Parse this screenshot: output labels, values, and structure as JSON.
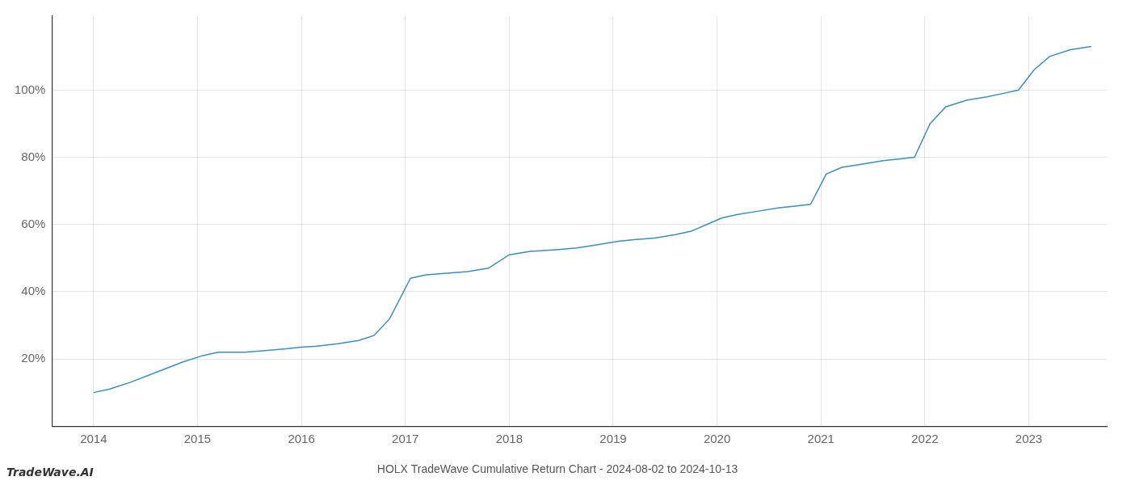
{
  "chart_data": {
    "type": "line",
    "title": "HOLX TradeWave Cumulative Return Chart - 2024-08-02 to 2024-10-13",
    "annotations": [
      "TradeWave.AI"
    ],
    "x": [
      2014.0,
      2014.15,
      2014.35,
      2014.6,
      2014.85,
      2015.05,
      2015.2,
      2015.45,
      2015.65,
      2015.85,
      2016.0,
      2016.15,
      2016.35,
      2016.55,
      2016.7,
      2016.85,
      2017.05,
      2017.2,
      2017.4,
      2017.6,
      2017.8,
      2018.0,
      2018.2,
      2018.45,
      2018.65,
      2018.85,
      2019.05,
      2019.2,
      2019.4,
      2019.6,
      2019.75,
      2019.9,
      2020.05,
      2020.2,
      2020.4,
      2020.6,
      2020.75,
      2020.9,
      2021.05,
      2021.2,
      2021.4,
      2021.6,
      2021.75,
      2021.9,
      2022.05,
      2022.2,
      2022.4,
      2022.6,
      2022.75,
      2022.9,
      2023.05,
      2023.2,
      2023.4,
      2023.6
    ],
    "values": [
      10,
      11,
      13,
      16,
      19,
      21,
      22,
      22,
      22.5,
      23,
      23.5,
      23.8,
      24.5,
      25.5,
      27,
      32,
      44,
      45,
      45.5,
      46,
      47,
      51,
      52,
      52.5,
      53,
      54,
      55,
      55.5,
      56,
      57,
      58,
      60,
      62,
      63,
      64,
      65,
      65.5,
      66,
      75,
      77,
      78,
      79,
      79.5,
      80,
      90,
      95,
      97,
      98,
      99,
      100,
      106,
      110,
      112,
      113
    ],
    "color": "#3a8fc0",
    "xlim": [
      2013.6,
      2023.75
    ],
    "ylim": [
      0,
      122
    ],
    "xticks": [
      2014,
      2015,
      2016,
      2017,
      2018,
      2019,
      2020,
      2021,
      2022,
      2023
    ],
    "yticks": [
      {
        "value": 20,
        "label": "20%"
      },
      {
        "value": 40,
        "label": "40%"
      },
      {
        "value": 60,
        "label": "60%"
      },
      {
        "value": 80,
        "label": "80%"
      },
      {
        "value": 100,
        "label": "100%"
      }
    ],
    "grid": true
  }
}
